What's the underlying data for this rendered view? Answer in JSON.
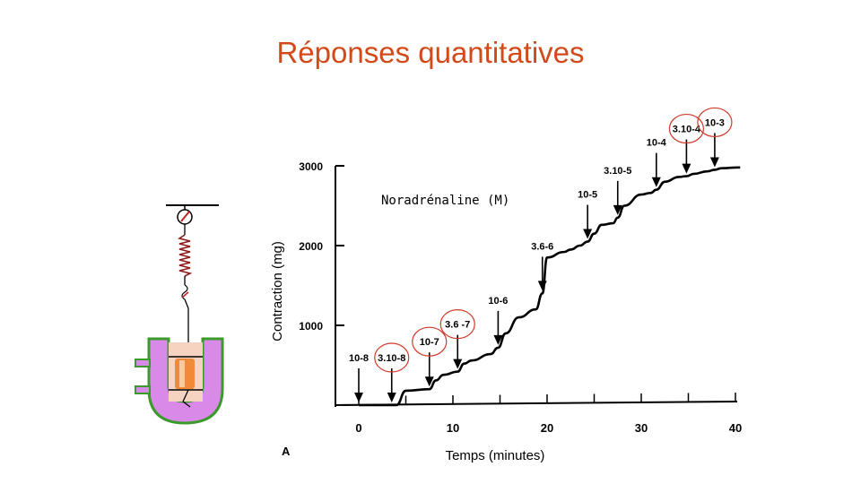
{
  "slide": {
    "title": "Réponses quantitatives"
  },
  "colors": {
    "title": "#d24a1a",
    "curve": "#000000",
    "circle": "#d23a2a",
    "spring": "#8b1a1a",
    "organ_bath": "#d98ae8",
    "organ_bath_border": "#3a9a2a",
    "tissue": "#f08a3a"
  },
  "apparatus": {
    "icons": [
      "gauge-icon",
      "spring-icon",
      "organ-bath-icon",
      "tissue-icon"
    ]
  },
  "chart_data": {
    "type": "line",
    "panel_label": "A",
    "annotation": "Noradrénaline (M)",
    "xlabel": "Temps (minutes)",
    "ylabel": "Contraction (mg)",
    "xlim": [
      0,
      40
    ],
    "ylim": [
      0,
      3000
    ],
    "x_ticks": [
      0,
      10,
      20,
      30,
      40
    ],
    "y_ticks": [
      1000,
      2000,
      3000
    ],
    "series": [
      {
        "x": [
          0,
          3.5,
          4,
          5,
          7.5,
          8.2,
          9,
          10.5,
          11.2,
          12,
          14,
          14.8,
          15.6,
          17,
          18.8,
          19.5,
          20,
          21.8,
          22.5,
          23.5,
          24.3,
          25,
          25.8,
          27,
          27.5,
          28.2,
          30,
          31,
          31.6,
          32.5,
          34,
          34.8,
          35.6,
          37,
          37.8,
          38.5,
          40.5
        ],
        "y": [
          0,
          0,
          0,
          180,
          200,
          310,
          380,
          420,
          520,
          560,
          640,
          720,
          900,
          1100,
          1200,
          1400,
          1850,
          1920,
          1950,
          2000,
          2050,
          2150,
          2260,
          2280,
          2350,
          2500,
          2640,
          2660,
          2700,
          2800,
          2860,
          2870,
          2900,
          2930,
          2950,
          2970,
          2980
        ]
      }
    ],
    "doses": [
      {
        "label": "10-8",
        "x": 0,
        "circled": false
      },
      {
        "label": "3.10-8",
        "x": 3.5,
        "circled": true
      },
      {
        "label": "10-7",
        "x": 7.5,
        "circled": true
      },
      {
        "label": "3.6 -7",
        "x": 10.5,
        "circled": true
      },
      {
        "label": "10-6",
        "x": 14.8,
        "circled": false
      },
      {
        "label": "3.6-6",
        "x": 19.5,
        "circled": false
      },
      {
        "label": "10-5",
        "x": 24.3,
        "circled": false
      },
      {
        "label": "3.10-5",
        "x": 27.5,
        "circled": false
      },
      {
        "label": "10-4",
        "x": 31.6,
        "circled": false
      },
      {
        "label": "3.10-4",
        "x": 34.8,
        "circled": true
      },
      {
        "label": "10-3",
        "x": 37.8,
        "circled": true
      }
    ],
    "grid": false
  }
}
